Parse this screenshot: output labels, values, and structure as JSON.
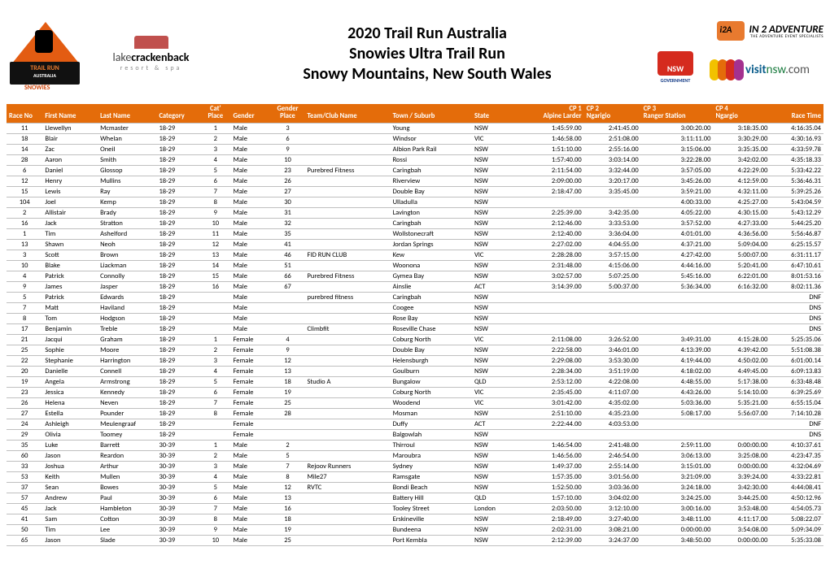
{
  "colors": {
    "header_bg": "#e46c0a",
    "header_fg": "#ffffff",
    "row_border": "#bfbfbf",
    "text": "#000000",
    "bg": "#ffffff"
  },
  "title": {
    "line1": "2020 Trail Run Australia",
    "line2": "Snowies Ultra Trail Run",
    "line3": "Snowy Mountains, New South Wales"
  },
  "logos": {
    "tra_banner_top": "TRAIL RUN",
    "tra_banner_bot": "AUSTRALIA",
    "tra_snowies": "SNOWIES",
    "lake_main_1": "lake",
    "lake_main_2": "crackenback",
    "lake_sub": "resort & spa",
    "i2a_main": "IN 2 ADVENTURE",
    "i2a_sub": "THE ADVENTURE EVENT SPECIALISTS",
    "nsw_gov": "GOVERNMENT",
    "visit_1": "visit",
    "visit_2": "nsw",
    "visit_3": ".com",
    "visit_petal_colors": [
      "#f2c100",
      "#e46c0a",
      "#d52b1e",
      "#a4318f"
    ]
  },
  "table": {
    "header_two_line": {
      "cat_place_top": "Cat'",
      "cat_place_bot": "Place",
      "gender_place_top": "Gender",
      "gender_place_bot": "Place",
      "cp1_top": "CP 1",
      "cp1_bot": "Alpine Larder",
      "cp2_top": "CP 2",
      "cp2_bot": "Ngarigio",
      "cp3_top": "CP 3",
      "cp3_bot": "Ranger Station",
      "cp4_top": "CP 4",
      "cp4_bot": "Ngargio"
    },
    "columns": [
      "Race No",
      "First Name",
      "Last Name",
      "Category",
      "Cat' Place",
      "Gender",
      "Gender Place",
      "Team/Club Name",
      "Town / Suburb",
      "State",
      "CP 1",
      "CP 2",
      "CP 3",
      "CP 4",
      "Race Time"
    ],
    "rows": [
      [
        "11",
        "Llewellyn",
        "Mcmaster",
        "18-29",
        "1",
        "Male",
        "3",
        "",
        "Young",
        "NSW",
        "1:45:59.00",
        "2:41:45.00",
        "3:00:20.00",
        "3:18:35.00",
        "4:16:35.04"
      ],
      [
        "18",
        "Blair",
        "Whelan",
        "18-29",
        "2",
        "Male",
        "6",
        "",
        "Windsor",
        "VIC",
        "1:46:58.00",
        "2:51:08.00",
        "3:11:11.00",
        "3:30:29.00",
        "4:30:16.93"
      ],
      [
        "14",
        "Zac",
        "Oneil",
        "18-29",
        "3",
        "Male",
        "9",
        "",
        "Albion Park Rail",
        "NSW",
        "1:51:10.00",
        "2:55:16.00",
        "3:15:06.00",
        "3:35:35.00",
        "4:33:59.78"
      ],
      [
        "28",
        "Aaron",
        "Smith",
        "18-29",
        "4",
        "Male",
        "10",
        "",
        "Rossi",
        "NSW",
        "1:57:40.00",
        "3:03:14.00",
        "3:22:28.00",
        "3:42:02.00",
        "4:35:18.33"
      ],
      [
        "6",
        "Daniel",
        "Glossop",
        "18-29",
        "5",
        "Male",
        "23",
        "Purebred Fitness",
        "Caringbah",
        "NSW",
        "2:11:54.00",
        "3:32:44.00",
        "3:57:05.00",
        "4:22:29.00",
        "5:33:42.22"
      ],
      [
        "12",
        "Henry",
        "Mullins",
        "18-29",
        "6",
        "Male",
        "26",
        "",
        "Riverview",
        "NSW",
        "2:09:00.00",
        "3:20:17.00",
        "3:45:26.00",
        "4:12:59.00",
        "5:36:46.31"
      ],
      [
        "15",
        "Lewis",
        "Ray",
        "18-29",
        "7",
        "Male",
        "27",
        "",
        "Double Bay",
        "NSW",
        "2:18:47.00",
        "3:35:45.00",
        "3:59:21.00",
        "4:32:11.00",
        "5:39:25.26"
      ],
      [
        "104",
        "Joel",
        "Kemp",
        "18-29",
        "8",
        "Male",
        "30",
        "",
        "Ulladulla",
        "NSW",
        "",
        "",
        "4:00:33.00",
        "4:25:27.00",
        "5:43:04.59"
      ],
      [
        "2",
        "Allistair",
        "Brady",
        "18-29",
        "9",
        "Male",
        "31",
        "",
        "Lavington",
        "NSW",
        "2:25:39.00",
        "3:42:35.00",
        "4:05:22.00",
        "4:30:15.00",
        "5:43:12.29"
      ],
      [
        "16",
        "Jack",
        "Stratton",
        "18-29",
        "10",
        "Male",
        "32",
        "",
        "Caringbah",
        "NSW",
        "2:12:46.00",
        "3:33:53.00",
        "3:57:52.00",
        "4:27:33.00",
        "5:44:25.20"
      ],
      [
        "1",
        "Tim",
        "Ashelford",
        "18-29",
        "11",
        "Male",
        "35",
        "",
        "Wollstonecraft",
        "NSW",
        "2:12:40.00",
        "3:36:04.00",
        "4:01:01.00",
        "4:36:56.00",
        "5:56:46.87"
      ],
      [
        "13",
        "Shawn",
        "Neoh",
        "18-29",
        "12",
        "Male",
        "41",
        "",
        "Jordan Springs",
        "NSW",
        "2:27:02.00",
        "4:04:55.00",
        "4:37:21.00",
        "5:09:04.00",
        "6:25:15.57"
      ],
      [
        "3",
        "Scott",
        "Brown",
        "18-29",
        "13",
        "Male",
        "46",
        "FID RUN CLUB",
        "Kew",
        "VIC",
        "2:28:28.00",
        "3:57:15.00",
        "4:27:42.00",
        "5:00:07.00",
        "6:31:11.17"
      ],
      [
        "10",
        "Blake",
        "Liackman",
        "18-29",
        "14",
        "Male",
        "51",
        "",
        "Woonona",
        "NSW",
        "2:31:48.00",
        "4:15:06.00",
        "4:44:16.00",
        "5:20:41.00",
        "6:47:10.61"
      ],
      [
        "4",
        "Patrick",
        "Connolly",
        "18-29",
        "15",
        "Male",
        "66",
        "Purebred Fitness",
        "Gymea Bay",
        "NSW",
        "3:02:57.00",
        "5:07:25.00",
        "5:45:16.00",
        "6:22:01.00",
        "8:01:53.16"
      ],
      [
        "9",
        "James",
        "Jasper",
        "18-29",
        "16",
        "Male",
        "67",
        "",
        "Ainslie",
        "ACT",
        "3:14:39.00",
        "5:00:37.00",
        "5:36:34.00",
        "6:16:32.00",
        "8:02:11.36"
      ],
      [
        "5",
        "Patrick",
        "Edwards",
        "18-29",
        "",
        "Male",
        "",
        "purebred fitness",
        "Caringbah",
        "NSW",
        "",
        "",
        "",
        "",
        "DNF"
      ],
      [
        "7",
        "Matt",
        "Haviland",
        "18-29",
        "",
        "Male",
        "",
        "",
        "Coogee",
        "NSW",
        "",
        "",
        "",
        "",
        "DNS"
      ],
      [
        "8",
        "Tom",
        "Hodgson",
        "18-29",
        "",
        "Male",
        "",
        "",
        "Rose Bay",
        "NSW",
        "",
        "",
        "",
        "",
        "DNS"
      ],
      [
        "17",
        "Benjamin",
        "Treble",
        "18-29",
        "",
        "Male",
        "",
        "Climbfit",
        "Roseville Chase",
        "NSW",
        "",
        "",
        "",
        "",
        "DNS"
      ],
      [
        "21",
        "Jacqui",
        "Graham",
        "18-29",
        "1",
        "Female",
        "4",
        "",
        "Coburg North",
        "VIC",
        "2:11:08.00",
        "3:26:52.00",
        "3:49:31.00",
        "4:15:28.00",
        "5:25:35.06"
      ],
      [
        "25",
        "Sophie",
        "Moore",
        "18-29",
        "2",
        "Female",
        "9",
        "",
        "Double Bay",
        "NSW",
        "2:22:58.00",
        "3:46:01.00",
        "4:13:39.00",
        "4:39:42.00",
        "5:51:08.38"
      ],
      [
        "22",
        "Stephanie",
        "Harrington",
        "18-29",
        "3",
        "Female",
        "12",
        "",
        "Helensburgh",
        "NSW",
        "2:29:08.00",
        "3:53:30.00",
        "4:19:44.00",
        "4:50:02.00",
        "6:01:00.14"
      ],
      [
        "20",
        "Danielle",
        "Connell",
        "18-29",
        "4",
        "Female",
        "13",
        "",
        "Goulburn",
        "NSW",
        "2:28:34.00",
        "3:51:19.00",
        "4:18:02.00",
        "4:49:45.00",
        "6:09:13.83"
      ],
      [
        "19",
        "Angela",
        "Armstrong",
        "18-29",
        "5",
        "Female",
        "18",
        "Studio A",
        "Bungalow",
        "QLD",
        "2:53:12.00",
        "4:22:08.00",
        "4:48:55.00",
        "5:17:38.00",
        "6:33:48.48"
      ],
      [
        "23",
        "Jessica",
        "Kennedy",
        "18-29",
        "6",
        "Female",
        "19",
        "",
        "Coburg North",
        "VIC",
        "2:35:45.00",
        "4:11:07.00",
        "4:43:26.00",
        "5:14:10.00",
        "6:39:25.69"
      ],
      [
        "26",
        "Helena",
        "Neven",
        "18-29",
        "7",
        "Female",
        "25",
        "",
        "Woodend",
        "VIC",
        "3:01:42.00",
        "4:35:02.00",
        "5:03:36.00",
        "5:35:21.00",
        "6:55:15.04"
      ],
      [
        "27",
        "Estella",
        "Pounder",
        "18-29",
        "8",
        "Female",
        "28",
        "",
        "Mosman",
        "NSW",
        "2:51:10.00",
        "4:35:23.00",
        "5:08:17.00",
        "5:56:07.00",
        "7:14:10.28"
      ],
      [
        "24",
        "Ashleigh",
        "Meulengraaf",
        "18-29",
        "",
        "Female",
        "",
        "",
        "Duffy",
        "ACT",
        "2:22:44.00",
        "4:03:53.00",
        "",
        "",
        "DNF"
      ],
      [
        "29",
        "Olivia",
        "Toomey",
        "18-29",
        "",
        "Female",
        "",
        "",
        "Balgowlah",
        "NSW",
        "",
        "",
        "",
        "",
        "DNS"
      ],
      [
        "35",
        "Luke",
        "Barrett",
        "30-39",
        "1",
        "Male",
        "2",
        "",
        "Thirroul",
        "NSW",
        "1:46:54.00",
        "2:41:48.00",
        "2:59:11.00",
        "0:00:00.00",
        "4:10:37.61"
      ],
      [
        "60",
        "Jason",
        "Reardon",
        "30-39",
        "2",
        "Male",
        "5",
        "",
        "Maroubra",
        "NSW",
        "1:46:56.00",
        "2:46:54.00",
        "3:06:13.00",
        "3:25:08.00",
        "4:23:47.35"
      ],
      [
        "33",
        "Joshua",
        "Arthur",
        "30-39",
        "3",
        "Male",
        "7",
        "Rejoov Runners",
        "Sydney",
        "NSW",
        "1:49:37.00",
        "2:55:14.00",
        "3:15:01.00",
        "0:00:00.00",
        "4:32:04.69"
      ],
      [
        "53",
        "Keith",
        "Mullen",
        "30-39",
        "4",
        "Male",
        "8",
        "Mile27",
        "Ramsgate",
        "NSW",
        "1:57:35.00",
        "3:01:56.00",
        "3:21:09.00",
        "3:39:24.00",
        "4:33:22.81"
      ],
      [
        "37",
        "Sean",
        "Bowes",
        "30-39",
        "5",
        "Male",
        "12",
        "RVTC",
        "Bondi Beach",
        "NSW",
        "1:52:50.00",
        "3:03:36.00",
        "3:24:18.00",
        "3:42:30.00",
        "4:44:08.41"
      ],
      [
        "57",
        "Andrew",
        "Paul",
        "30-39",
        "6",
        "Male",
        "13",
        "",
        "Battery Hill",
        "QLD",
        "1:57:10.00",
        "3:04:02.00",
        "3:24:25.00",
        "3:44:25.00",
        "4:50:12.96"
      ],
      [
        "45",
        "Jack",
        "Hambleton",
        "30-39",
        "7",
        "Male",
        "16",
        "",
        "Tooley Street",
        "London",
        "2:03:50.00",
        "3:12:10.00",
        "3:00:16.00",
        "3:53:48.00",
        "4:54:05.73"
      ],
      [
        "41",
        "Sam",
        "Cotton",
        "30-39",
        "8",
        "Male",
        "18",
        "",
        "Erskineville",
        "NSW",
        "2:18:49.00",
        "3:27:40.00",
        "3:48:11.00",
        "4:11:17.00",
        "5:08:22.07"
      ],
      [
        "50",
        "Tim",
        "Lee",
        "30-39",
        "9",
        "Male",
        "19",
        "",
        "Bundeena",
        "NSW",
        "2:02:31.00",
        "3:08:21.00",
        "0:00:00.00",
        "3:54:08.00",
        "5:09:34.09"
      ],
      [
        "65",
        "Jason",
        "Slade",
        "30-39",
        "10",
        "Male",
        "25",
        "",
        "Port Kembla",
        "NSW",
        "2:12:39.00",
        "3:24:37.00",
        "3:48:50.00",
        "0:00:00.00",
        "5:35:33.08"
      ]
    ]
  }
}
